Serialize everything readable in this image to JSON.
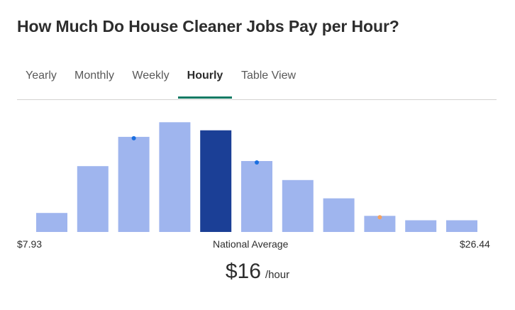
{
  "title": "How Much Do House Cleaner Jobs Pay per Hour?",
  "tabs": [
    {
      "label": "Yearly",
      "active": false
    },
    {
      "label": "Monthly",
      "active": false
    },
    {
      "label": "Weekly",
      "active": false
    },
    {
      "label": "Hourly",
      "active": true
    },
    {
      "label": "Table View",
      "active": false
    }
  ],
  "colors": {
    "bar": "#9fb5ee",
    "bar_highlight": "#1b3f96",
    "marker_blue": "#1a6fe0",
    "marker_orange": "#f4a261",
    "tab_underline": "#0d7a63"
  },
  "chart_data": {
    "type": "bar",
    "values": [
      26,
      90,
      130,
      150,
      139,
      97,
      71,
      46,
      22,
      16,
      16
    ],
    "highlight_index": 4,
    "markers": [
      {
        "bar": 2,
        "color": "blue"
      },
      {
        "bar": 5,
        "color": "blue"
      },
      {
        "bar": 8,
        "color": "orange"
      }
    ],
    "ylim": [
      0,
      160
    ],
    "x_min_label": "$7.93",
    "x_mid_label": "National Average",
    "x_max_label": "$26.44"
  },
  "average": {
    "amount": "$16",
    "unit": "/hour"
  }
}
